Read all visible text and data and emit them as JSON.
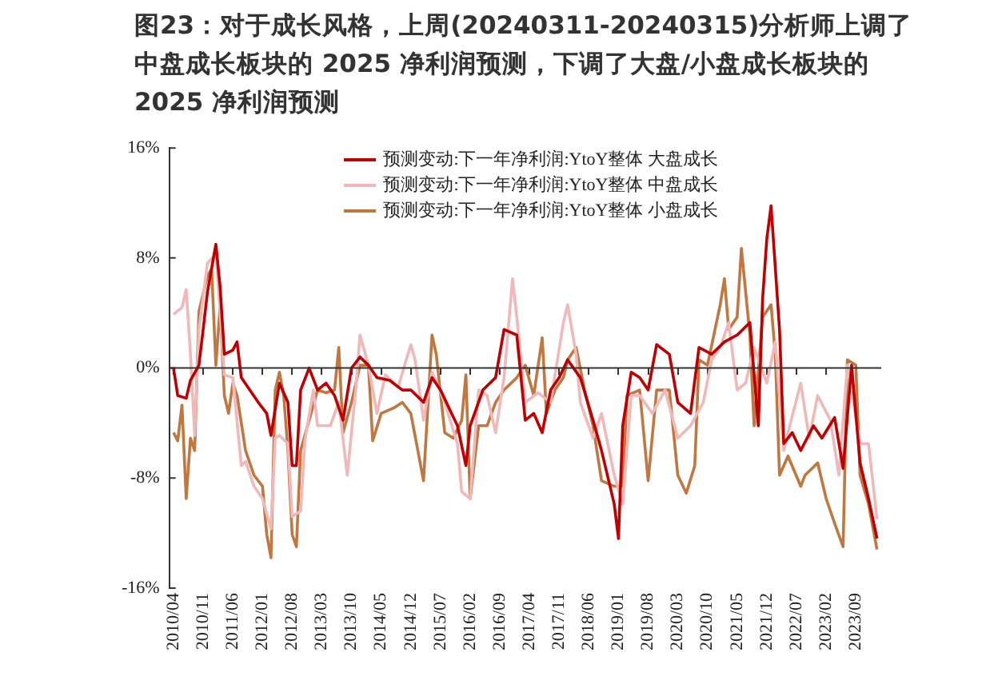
{
  "chart_data": {
    "type": "line",
    "title": "图23：对于成长风格，上周(20240311-20240315)分析师上调了中盘成长板块的 2025 净利润预测，下调了大盘/小盘成长板块的 2025 净利润预测",
    "xlim": [
      "2010-03",
      "2024-03"
    ],
    "xticks": [
      {
        "value": "2010-04",
        "label": "2010/04"
      },
      {
        "value": "2010-11",
        "label": "2010/11"
      },
      {
        "value": "2011-06",
        "label": "2011/06"
      },
      {
        "value": "2012-01",
        "label": "2012/01"
      },
      {
        "value": "2012-08",
        "label": "2012/08"
      },
      {
        "value": "2013-03",
        "label": "2013/03"
      },
      {
        "value": "2013-10",
        "label": "2013/10"
      },
      {
        "value": "2014-05",
        "label": "2014/05"
      },
      {
        "value": "2014-12",
        "label": "2014/12"
      },
      {
        "value": "2015-07",
        "label": "2015/07"
      },
      {
        "value": "2016-02",
        "label": "2016/02"
      },
      {
        "value": "2016-09",
        "label": "2016/09"
      },
      {
        "value": "2017-04",
        "label": "2017/04"
      },
      {
        "value": "2017-11",
        "label": "2017/11"
      },
      {
        "value": "2018-06",
        "label": "2018/06"
      },
      {
        "value": "2019-01",
        "label": "2019/01"
      },
      {
        "value": "2019-08",
        "label": "2019/08"
      },
      {
        "value": "2020-03",
        "label": "2020/03"
      },
      {
        "value": "2020-10",
        "label": "2020/10"
      },
      {
        "value": "2021-05",
        "label": "2021/05"
      },
      {
        "value": "2021-12",
        "label": "2021/12"
      },
      {
        "value": "2022-07",
        "label": "2022/07"
      },
      {
        "value": "2023-02",
        "label": "2023/02"
      },
      {
        "value": "2023-09",
        "label": "2023/09"
      }
    ],
    "ylim": [
      -16,
      16
    ],
    "yticks": [
      {
        "value": -16,
        "label": "-16%"
      },
      {
        "value": -8,
        "label": "-8%"
      },
      {
        "value": 0,
        "label": "0%"
      },
      {
        "value": 8,
        "label": "8%"
      },
      {
        "value": 16,
        "label": "16%"
      }
    ],
    "ref_lines": [
      {
        "axis": "y",
        "value": 0,
        "color": "#333333"
      }
    ],
    "legend": "top right",
    "grid": false,
    "marker": "none",
    "series": [
      {
        "name": "预测变动:下一年净利润:YtoY整体 大盘成长",
        "color": "#c00000",
        "x": [
          "2010-04",
          "2010-05",
          "2010-07",
          "2010-08",
          "2010-10",
          "2010-11",
          "2010-12",
          "2011-02",
          "2011-03",
          "2011-04",
          "2011-06",
          "2011-07",
          "2011-08",
          "2011-10",
          "2011-12",
          "2012-02",
          "2012-03",
          "2012-05",
          "2012-07",
          "2012-08",
          "2012-09",
          "2012-10",
          "2012-12",
          "2013-02",
          "2013-04",
          "2013-06",
          "2013-08",
          "2013-10",
          "2013-12",
          "2014-02",
          "2014-04",
          "2014-07",
          "2014-10",
          "2014-12",
          "2015-03",
          "2015-05",
          "2015-07",
          "2015-09",
          "2015-11",
          "2016-01",
          "2016-02",
          "2016-05",
          "2016-08",
          "2016-10",
          "2017-01",
          "2017-03",
          "2017-05",
          "2017-07",
          "2017-09",
          "2017-11",
          "2018-01",
          "2018-04",
          "2018-07",
          "2018-09",
          "2018-12",
          "2019-01",
          "2019-02",
          "2019-04",
          "2019-06",
          "2019-08",
          "2019-10",
          "2020-01",
          "2020-03",
          "2020-06",
          "2020-08",
          "2020-11",
          "2021-02",
          "2021-05",
          "2021-08",
          "2021-10",
          "2021-11",
          "2021-12",
          "2022-01",
          "2022-03",
          "2022-04",
          "2022-06",
          "2022-08",
          "2022-11",
          "2023-01",
          "2023-04",
          "2023-06",
          "2023-08",
          "2023-10",
          "2023-12",
          "2024-02"
        ],
        "values": [
          0,
          -2,
          -2.2,
          -0.9,
          0.2,
          2.8,
          5.5,
          9,
          5.9,
          1,
          1.3,
          1.9,
          -0.7,
          -1.6,
          -2.5,
          -3.3,
          -4.9,
          -1.1,
          -2.5,
          -7.1,
          -7.1,
          -1.6,
          0,
          -1.6,
          -1.1,
          -2,
          -3.8,
          0,
          0.8,
          0.2,
          -0.7,
          -0.9,
          -1.6,
          -1.6,
          -2.5,
          -0.7,
          -1.6,
          -2.9,
          -4.2,
          -7.1,
          -4.2,
          -1.6,
          -0.7,
          2.8,
          2.4,
          -3.8,
          -3.3,
          -4.7,
          -1.6,
          -0.7,
          0.6,
          -0.7,
          -3.8,
          -6,
          -9.9,
          -12.4,
          -4.2,
          -0.3,
          -0.7,
          -1.6,
          1.7,
          1,
          -2.5,
          -3.3,
          1.5,
          1,
          1.9,
          2.4,
          3.3,
          -4.2,
          5,
          9.4,
          11.8,
          2.8,
          -5.5,
          -4.7,
          -6,
          -4.2,
          -5.1,
          -3.6,
          -7.3,
          0.2,
          -6.9,
          -9.5,
          -12.4
        ]
      },
      {
        "name": "预测变动:下一年净利润:YtoY整体 中盘成长",
        "color": "#f0b8b8",
        "x": [
          "2010-04",
          "2010-06",
          "2010-07",
          "2010-08",
          "2010-09",
          "2010-10",
          "2010-12",
          "2011-02",
          "2011-03",
          "2011-04",
          "2011-06",
          "2011-08",
          "2011-09",
          "2011-11",
          "2012-01",
          "2012-03",
          "2012-04",
          "2012-05",
          "2012-07",
          "2012-08",
          "2012-10",
          "2012-11",
          "2013-01",
          "2013-02",
          "2013-05",
          "2013-07",
          "2013-09",
          "2013-11",
          "2013-12",
          "2014-02",
          "2014-04",
          "2014-06",
          "2014-09",
          "2014-12",
          "2015-01",
          "2015-03",
          "2015-05",
          "2015-08",
          "2015-11",
          "2015-12",
          "2016-02",
          "2016-04",
          "2016-06",
          "2016-08",
          "2016-10",
          "2016-12",
          "2017-01",
          "2017-03",
          "2017-06",
          "2017-09",
          "2017-12",
          "2018-01",
          "2018-03",
          "2018-04",
          "2018-07",
          "2018-09",
          "2018-12",
          "2019-02",
          "2019-04",
          "2019-06",
          "2019-09",
          "2019-12",
          "2020-03",
          "2020-06",
          "2020-09",
          "2020-11",
          "2021-01",
          "2021-03",
          "2021-05",
          "2021-07",
          "2021-09",
          "2021-12",
          "2022-02",
          "2022-04",
          "2022-05",
          "2022-08",
          "2022-10",
          "2022-12",
          "2023-03",
          "2023-05",
          "2023-07",
          "2023-10",
          "2023-12",
          "2024-02"
        ],
        "values": [
          3.9,
          4.4,
          5.7,
          1,
          -4.9,
          2.8,
          7.6,
          8.3,
          4.1,
          -0.5,
          -0.7,
          -7.1,
          -6.8,
          -8.6,
          -9.5,
          -11.7,
          -5.1,
          -4.9,
          -5.5,
          -10.8,
          -10.4,
          -5.3,
          -1.6,
          -4.2,
          -4.2,
          -2.5,
          -7.8,
          -1.6,
          2.4,
          0.2,
          -3.3,
          -0.5,
          -1.4,
          1.7,
          0.6,
          -3.8,
          -0.3,
          -2.5,
          -5.5,
          -9,
          -9.5,
          -1.6,
          -2,
          -4.7,
          -0.7,
          6.5,
          3.7,
          -2.5,
          -1.8,
          -2.5,
          3.3,
          4.6,
          1,
          -2.5,
          -5.1,
          -3.3,
          -7.8,
          -9.9,
          -2,
          -2,
          -3.3,
          -1.6,
          -5.1,
          -4.2,
          -2.5,
          0.6,
          1.5,
          3.3,
          -1.6,
          -1.1,
          1.5,
          -1.1,
          1.9,
          -6,
          -4.7,
          -1.1,
          -5.1,
          -2,
          -3.8,
          -7.8,
          0.2,
          -5.5,
          -5.5,
          -11
        ]
      },
      {
        "name": "预测变动:下一年净利润:YtoY整体 小盘成长",
        "color": "#c07840",
        "x": [
          "2010-04",
          "2010-05",
          "2010-06",
          "2010-07",
          "2010-08",
          "2010-09",
          "2010-10",
          "2010-12",
          "2011-01",
          "2011-02",
          "2011-03",
          "2011-04",
          "2011-05",
          "2011-06",
          "2011-07",
          "2011-09",
          "2011-11",
          "2012-01",
          "2012-02",
          "2012-03",
          "2012-04",
          "2012-05",
          "2012-06",
          "2012-07",
          "2012-08",
          "2012-09",
          "2012-10",
          "2012-12",
          "2013-02",
          "2013-04",
          "2013-06",
          "2013-07",
          "2013-08",
          "2013-10",
          "2013-12",
          "2014-02",
          "2014-03",
          "2014-05",
          "2014-08",
          "2014-10",
          "2014-12",
          "2015-03",
          "2015-05",
          "2015-06",
          "2015-08",
          "2015-10",
          "2015-12",
          "2016-01",
          "2016-02",
          "2016-04",
          "2016-06",
          "2016-08",
          "2016-10",
          "2017-01",
          "2017-03",
          "2017-05",
          "2017-07",
          "2017-08",
          "2017-10",
          "2017-12",
          "2018-01",
          "2018-03",
          "2018-05",
          "2018-07",
          "2018-09",
          "2018-12",
          "2019-02",
          "2019-03",
          "2019-06",
          "2019-08",
          "2019-10",
          "2020-01",
          "2020-03",
          "2020-05",
          "2020-07",
          "2020-08",
          "2020-10",
          "2021-01",
          "2021-02",
          "2021-03",
          "2021-05",
          "2021-06",
          "2021-08",
          "2021-09",
          "2021-11",
          "2022-01",
          "2022-02",
          "2022-03",
          "2022-05",
          "2022-08",
          "2022-09",
          "2022-12",
          "2023-02",
          "2023-04",
          "2023-06",
          "2023-07",
          "2023-09",
          "2023-10",
          "2023-12",
          "2024-02"
        ],
        "values": [
          -4.7,
          -5.3,
          -2.7,
          -9.5,
          -5.1,
          -6,
          4.1,
          6.7,
          7.2,
          0.2,
          4.5,
          -2,
          -3.3,
          -1.1,
          -2,
          -6,
          -7.8,
          -8.6,
          -12.1,
          -13.8,
          -1.6,
          -0.3,
          -2,
          -6,
          -12.1,
          -13,
          -6,
          -3.8,
          -1.6,
          -1.8,
          -1.6,
          1.5,
          -4.7,
          -2.5,
          0.2,
          0.2,
          -5.3,
          -3.3,
          -2.9,
          -2.5,
          -3.3,
          -8.2,
          2.4,
          1,
          -4.7,
          -5.1,
          -3.8,
          -0.5,
          -9.5,
          -4.2,
          -4.2,
          -2.5,
          -1.6,
          -0.7,
          0.2,
          -2,
          2.2,
          -3.3,
          -1.6,
          -0.7,
          0.6,
          1.5,
          -1.6,
          -4.2,
          -8.2,
          -8.6,
          -8.6,
          -2,
          -1.6,
          -8.2,
          -1.6,
          -1.6,
          -7.8,
          -9.1,
          -7.1,
          0.6,
          0.2,
          4.6,
          6.5,
          2.8,
          3.7,
          8.7,
          2.4,
          -4.2,
          3.7,
          4.6,
          1,
          -7.8,
          -6.4,
          -8.6,
          -7.8,
          -6.9,
          -9.5,
          -11.3,
          -13,
          0.6,
          0.2,
          -7.8,
          -9.9,
          -13.2
        ]
      }
    ]
  }
}
